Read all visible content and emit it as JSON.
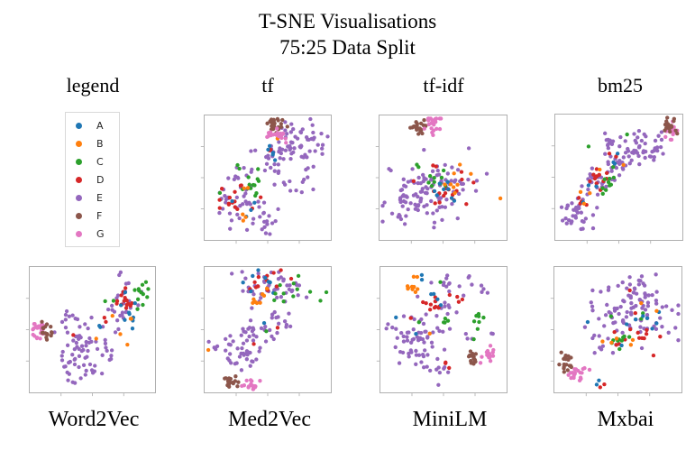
{
  "title": {
    "line1": "T-SNE Visualisations",
    "line2": "75:25 Data Split"
  },
  "labels": {
    "legend": "legend",
    "tf": "tf",
    "tf_idf": "tf-idf",
    "bm25": "bm25",
    "word2vec": "Word2Vec",
    "med2vec": "Med2Vec",
    "minilm": "MiniLM",
    "mxbai": "Mxbai"
  },
  "legend": {
    "items": [
      {
        "label": "A",
        "color": "#1f77b4"
      },
      {
        "label": "B",
        "color": "#ff7f0e"
      },
      {
        "label": "C",
        "color": "#2ca02c"
      },
      {
        "label": "D",
        "color": "#d62728"
      },
      {
        "label": "E",
        "color": "#9467bd"
      },
      {
        "label": "F",
        "color": "#8c564b"
      },
      {
        "label": "G",
        "color": "#e377c2"
      }
    ]
  },
  "chart_data": {
    "type": "scatter",
    "note": "Eight t-SNE embedding panels; points grouped by class A-G. Clusters given as [class, cx, cy, sx, sy, n] in 0-100 panel coords (y down).",
    "frame_color": "#b0b0b0",
    "tick_positions": [
      25,
      50,
      75
    ],
    "panels": [
      {
        "name": "tf",
        "clusters": [
          [
            "E",
            78,
            22,
            10,
            8,
            45
          ],
          [
            "E",
            55,
            34,
            7,
            6,
            22
          ],
          [
            "E",
            74,
            50,
            8,
            7,
            18
          ],
          [
            "E",
            28,
            64,
            12,
            11,
            48
          ],
          [
            "E",
            46,
            86,
            7,
            4,
            14
          ],
          [
            "E",
            62,
            14,
            5,
            4,
            8
          ],
          [
            "D",
            22,
            72,
            7,
            7,
            12
          ],
          [
            "D",
            52,
            26,
            2,
            2,
            2
          ],
          [
            "D",
            14,
            60,
            1,
            1,
            1
          ],
          [
            "D",
            30,
            55,
            2,
            2,
            2
          ],
          [
            "C",
            38,
            55,
            4,
            8,
            12
          ],
          [
            "C",
            27,
            42,
            2,
            2,
            2
          ],
          [
            "C",
            12,
            62,
            1,
            1,
            1
          ],
          [
            "A",
            53,
            31,
            4,
            5,
            5
          ],
          [
            "A",
            28,
            68,
            5,
            6,
            4
          ],
          [
            "B",
            58,
            18,
            1,
            1,
            1
          ],
          [
            "B",
            35,
            63,
            2,
            2,
            2
          ],
          [
            "B",
            31,
            82,
            3,
            2,
            3
          ],
          [
            "F",
            56,
            7,
            3.5,
            3,
            24
          ],
          [
            "G",
            56,
            15.5,
            3.5,
            2.2,
            20
          ]
        ]
      },
      {
        "name": "tf_idf",
        "clusters": [
          [
            "E",
            38,
            62,
            16,
            12,
            105
          ],
          [
            "E",
            60,
            50,
            6,
            5,
            10
          ],
          [
            "D",
            52,
            62,
            5,
            5,
            14
          ],
          [
            "D",
            63,
            48,
            2,
            2,
            2
          ],
          [
            "D",
            73,
            52,
            1,
            1,
            1
          ],
          [
            "D",
            26,
            52,
            1,
            1,
            1
          ],
          [
            "D",
            42,
            40,
            1,
            1,
            1
          ],
          [
            "C",
            44,
            52,
            4,
            4,
            9
          ],
          [
            "C",
            30,
            42,
            1.5,
            1.5,
            2
          ],
          [
            "B",
            57,
            53,
            3,
            5,
            6
          ],
          [
            "B",
            73,
            45,
            1,
            1,
            1
          ],
          [
            "B",
            95,
            65,
            1,
            1,
            1
          ],
          [
            "B",
            63,
            40,
            1,
            1,
            1
          ],
          [
            "A",
            48,
            57,
            5,
            5,
            6
          ],
          [
            "A",
            57,
            68,
            2,
            2,
            2
          ],
          [
            "F",
            30,
            10,
            3.5,
            3,
            22
          ],
          [
            "G",
            43,
            6,
            3.5,
            3.5,
            22
          ]
        ]
      },
      {
        "name": "bm25",
        "clusters": [
          [
            "E",
            70,
            25,
            10,
            8,
            45
          ],
          [
            "E",
            46,
            42,
            7,
            6,
            25
          ],
          [
            "E",
            31,
            55,
            6,
            6,
            18
          ],
          [
            "E",
            15,
            78,
            8,
            7,
            32
          ],
          [
            "E",
            43,
            24,
            4,
            6,
            12
          ],
          [
            "D",
            33,
            48,
            5,
            5,
            12
          ],
          [
            "D",
            20,
            68,
            3,
            3,
            4
          ],
          [
            "D",
            45,
            32,
            2,
            2,
            2
          ],
          [
            "C",
            42,
            52,
            3,
            5,
            10
          ],
          [
            "C",
            27,
            26,
            1,
            1,
            1
          ],
          [
            "C",
            55,
            15,
            1,
            1,
            1
          ],
          [
            "A",
            31,
            56,
            2,
            2,
            2
          ],
          [
            "A",
            45,
            40,
            2,
            2,
            2
          ],
          [
            "A",
            50,
            30,
            1,
            1,
            1
          ],
          [
            "A",
            22,
            70,
            1,
            1,
            1
          ],
          [
            "B",
            25,
            62,
            2,
            2,
            2
          ],
          [
            "B",
            21,
            73,
            1,
            1,
            1
          ],
          [
            "B",
            36,
            45,
            1,
            1,
            1
          ],
          [
            "B",
            52,
            42,
            1,
            1,
            1
          ],
          [
            "G",
            92,
            13,
            3,
            3.5,
            18
          ],
          [
            "F",
            90,
            8,
            2.5,
            3.5,
            20
          ]
        ]
      },
      {
        "name": "word2vec",
        "clusters": [
          [
            "E",
            45,
            62,
            12,
            12,
            60
          ],
          [
            "E",
            42,
            85,
            8,
            5,
            14
          ],
          [
            "E",
            72,
            30,
            8,
            7,
            20
          ],
          [
            "E",
            75,
            10,
            4,
            4,
            4
          ],
          [
            "E",
            30,
            40,
            4,
            5,
            6
          ],
          [
            "D",
            74,
            27,
            6,
            5,
            15
          ],
          [
            "D",
            33,
            55,
            1,
            1,
            1
          ],
          [
            "D",
            60,
            40,
            2,
            2,
            2
          ],
          [
            "C",
            88,
            19,
            4,
            7,
            12
          ],
          [
            "C",
            65,
            25,
            2,
            2,
            2
          ],
          [
            "A",
            78,
            33,
            6,
            7,
            9
          ],
          [
            "A",
            55,
            45,
            2,
            2,
            2
          ],
          [
            "B",
            80,
            42,
            2,
            2,
            2
          ],
          [
            "B",
            65,
            40,
            1,
            1,
            1
          ],
          [
            "B",
            72,
            55,
            1,
            1,
            1
          ],
          [
            "B",
            78,
            62,
            1,
            1,
            1
          ],
          [
            "B",
            55,
            58,
            1,
            1,
            1
          ],
          [
            "G",
            7,
            51,
            2.5,
            3.5,
            20
          ],
          [
            "F",
            13,
            52,
            3,
            4,
            18
          ]
        ]
      },
      {
        "name": "med2vec",
        "clusters": [
          [
            "E",
            55,
            16,
            17,
            7,
            48
          ],
          [
            "E",
            45,
            50,
            10,
            6,
            24
          ],
          [
            "E",
            30,
            68,
            10,
            7,
            34
          ],
          [
            "E",
            8,
            64,
            3,
            3,
            3
          ],
          [
            "E",
            55,
            38,
            3,
            3,
            4
          ],
          [
            "E",
            65,
            45,
            4,
            3,
            4
          ],
          [
            "D",
            50,
            11,
            12,
            5,
            12
          ],
          [
            "D",
            38,
            62,
            1,
            1,
            1
          ],
          [
            "D",
            58,
            48,
            1,
            1,
            1
          ],
          [
            "A",
            45,
            14,
            10,
            6,
            8
          ],
          [
            "A",
            48,
            45,
            1,
            1,
            1
          ],
          [
            "B",
            45,
            24,
            6,
            4,
            8
          ],
          [
            "B",
            3,
            65,
            1,
            1,
            1
          ],
          [
            "C",
            70,
            20,
            8,
            5,
            10
          ],
          [
            "C",
            95,
            22,
            2,
            2,
            2
          ],
          [
            "C",
            50,
            52,
            1,
            1,
            1
          ],
          [
            "F",
            19,
            91,
            3.5,
            2.5,
            18
          ],
          [
            "G",
            37,
            93,
            3.5,
            2.5,
            18
          ]
        ]
      },
      {
        "name": "minilm",
        "clusters": [
          [
            "E",
            30,
            60,
            12,
            11,
            65
          ],
          [
            "E",
            60,
            12,
            12,
            5,
            14
          ],
          [
            "E",
            80,
            20,
            4,
            4,
            4
          ],
          [
            "E",
            50,
            35,
            5,
            5,
            8
          ],
          [
            "E",
            45,
            80,
            6,
            4,
            8
          ],
          [
            "E",
            70,
            55,
            4,
            3,
            3
          ],
          [
            "E",
            90,
            55,
            2,
            2,
            2
          ],
          [
            "E",
            45,
            95,
            1,
            1,
            1
          ],
          [
            "B",
            26,
            16,
            3,
            3,
            10
          ],
          [
            "B",
            40,
            52,
            1,
            1,
            1
          ],
          [
            "D",
            43,
            30,
            5,
            3,
            10
          ],
          [
            "D",
            65,
            29,
            2,
            2,
            3
          ],
          [
            "D",
            53,
            79,
            2,
            2,
            3
          ],
          [
            "D",
            23,
            40,
            1,
            1,
            1
          ],
          [
            "D",
            55,
            22,
            1,
            1,
            1
          ],
          [
            "A",
            34,
            9,
            2,
            2,
            2
          ],
          [
            "A",
            42,
            21,
            2,
            2,
            3
          ],
          [
            "A",
            13,
            42,
            1,
            1,
            1
          ],
          [
            "A",
            28,
            54,
            1,
            1,
            1
          ],
          [
            "A",
            48,
            28,
            1,
            1,
            1
          ],
          [
            "C",
            77,
            40,
            3,
            4,
            8
          ],
          [
            "C",
            52,
            42,
            2,
            3,
            4
          ],
          [
            "C",
            73,
            58,
            1,
            1,
            1
          ],
          [
            "C",
            47,
            12,
            1,
            1,
            1
          ],
          [
            "C",
            30,
            45,
            1,
            1,
            1
          ],
          [
            "F",
            74,
            73,
            2.5,
            3.5,
            16
          ],
          [
            "G",
            86,
            70,
            3,
            3.5,
            18
          ]
        ]
      },
      {
        "name": "mxbai",
        "clusters": [
          [
            "E",
            62,
            33,
            15,
            13,
            100
          ],
          [
            "E",
            40,
            65,
            5,
            4,
            6
          ],
          [
            "E",
            30,
            55,
            3,
            3,
            3
          ],
          [
            "D",
            63,
            52,
            11,
            7,
            14
          ],
          [
            "D",
            38,
            93,
            1.5,
            1.5,
            2
          ],
          [
            "D",
            60,
            20,
            1,
            1,
            1
          ],
          [
            "C",
            52,
            57,
            9,
            5,
            9
          ],
          [
            "C",
            70,
            40,
            2,
            2,
            2
          ],
          [
            "C",
            45,
            40,
            1,
            1,
            1
          ],
          [
            "A",
            64,
            44,
            9,
            7,
            8
          ],
          [
            "A",
            36,
            92,
            1.5,
            1.5,
            2
          ],
          [
            "A",
            25,
            45,
            1,
            1,
            1
          ],
          [
            "B",
            48,
            60,
            7,
            3,
            5
          ],
          [
            "B",
            68,
            28,
            1,
            1,
            1
          ],
          [
            "B",
            80,
            35,
            1,
            1,
            1
          ],
          [
            "F",
            9,
            79,
            3,
            3.5,
            18
          ],
          [
            "G",
            17.5,
            84,
            3.5,
            3.5,
            20
          ]
        ]
      }
    ]
  }
}
